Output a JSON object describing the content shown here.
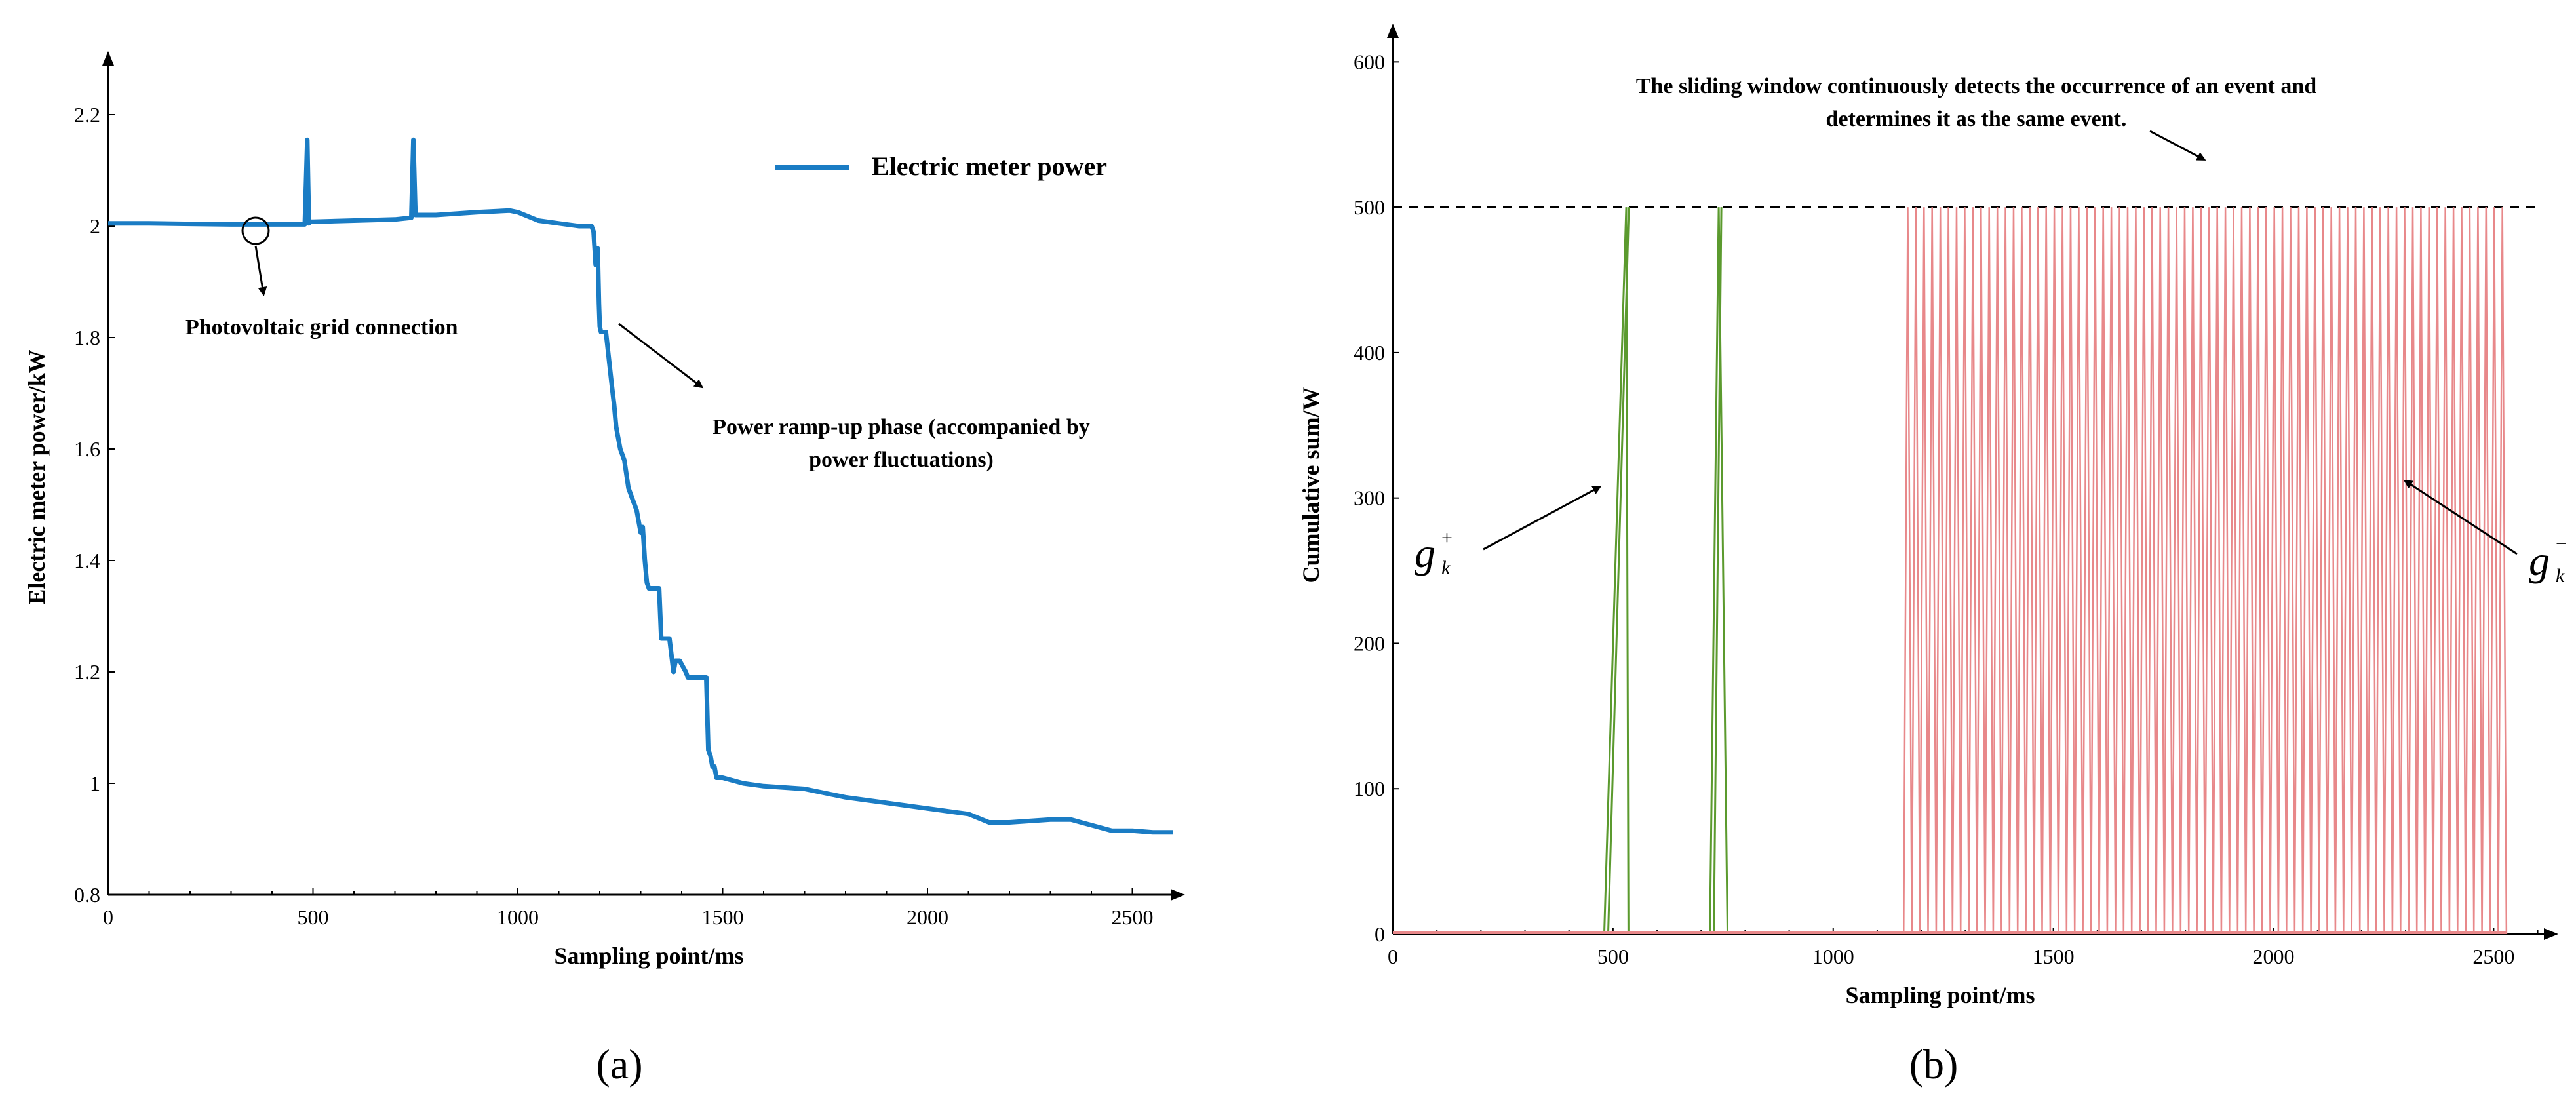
{
  "figure": {
    "panel_labels": [
      "(a)",
      "(b)"
    ]
  },
  "chart_data": [
    {
      "panel": "(a)",
      "type": "line",
      "title": "",
      "xlabel": "Sampling point/ms",
      "ylabel": "Electric meter power/kW",
      "xlim": [
        0,
        2600
      ],
      "ylim": [
        0.8,
        2.3
      ],
      "xticks": [
        0,
        500,
        1000,
        1500,
        2000,
        2500
      ],
      "yticks": [
        0.8,
        1,
        1.2,
        1.4,
        1.6,
        1.8,
        2,
        2.2
      ],
      "xtick_labels": [
        "0",
        "500",
        "1000",
        "1500",
        "2000",
        "2500"
      ],
      "ytick_labels": [
        "0.8",
        "1",
        "1.2",
        "1.4",
        "1.6",
        "1.8",
        "2",
        "2.2"
      ],
      "legend": {
        "position": "top-right",
        "entries": [
          "Electric meter power"
        ]
      },
      "series": [
        {
          "name": "Electric meter power",
          "color": "#1a7cc4",
          "x": [
            0,
            100,
            200,
            300,
            400,
            480,
            486,
            490,
            494,
            500,
            600,
            700,
            740,
            745,
            750,
            760,
            800,
            900,
            980,
            1000,
            1050,
            1100,
            1150,
            1180,
            1185,
            1190,
            1195,
            1198,
            1200,
            1203,
            1205,
            1215,
            1230,
            1235,
            1240,
            1250,
            1260,
            1270,
            1280,
            1290,
            1300,
            1305,
            1310,
            1315,
            1320,
            1330,
            1345,
            1350,
            1360,
            1370,
            1380,
            1385,
            1395,
            1410,
            1415,
            1430,
            1435,
            1460,
            1465,
            1470,
            1475,
            1480,
            1485,
            1500,
            1550,
            1600,
            1700,
            1800,
            1900,
            2000,
            2100,
            2150,
            2200,
            2300,
            2350,
            2400,
            2450,
            2500,
            2550,
            2600
          ],
          "y": [
            2.005,
            2.005,
            2.004,
            2.003,
            2.003,
            2.003,
            2.155,
            2.005,
            2.008,
            2.008,
            2.01,
            2.012,
            2.015,
            2.155,
            2.02,
            2.02,
            2.02,
            2.025,
            2.028,
            2.025,
            2.01,
            2.005,
            2.0,
            2.0,
            1.99,
            1.93,
            1.96,
            1.86,
            1.82,
            1.81,
            1.81,
            1.81,
            1.71,
            1.68,
            1.64,
            1.6,
            1.58,
            1.53,
            1.51,
            1.49,
            1.45,
            1.46,
            1.4,
            1.36,
            1.35,
            1.35,
            1.35,
            1.26,
            1.26,
            1.26,
            1.2,
            1.22,
            1.22,
            1.2,
            1.19,
            1.19,
            1.19,
            1.19,
            1.06,
            1.05,
            1.03,
            1.03,
            1.01,
            1.01,
            1.0,
            0.995,
            0.99,
            0.975,
            0.965,
            0.955,
            0.945,
            0.93,
            0.93,
            0.935,
            0.935,
            0.925,
            0.915,
            0.915,
            0.912,
            0.912
          ]
        }
      ],
      "annotations": [
        {
          "text": "Photovoltaic grid connection",
          "x": 370,
          "y": 2.0
        },
        {
          "text": "Power ramp-up phase (accompanied by",
          "x": 1180,
          "y": 1.9
        },
        {
          "text": "power fluctuations)",
          "x": 1180,
          "y": 1.9
        }
      ]
    },
    {
      "panel": "(b)",
      "type": "line",
      "title": "",
      "xlabel": "Sampling point/ms",
      "ylabel": "Cumulative sum/W",
      "xlim": [
        0,
        2620
      ],
      "ylim": [
        0,
        620
      ],
      "xticks": [
        0,
        500,
        1000,
        1500,
        2000,
        2500
      ],
      "yticks": [
        0,
        100,
        200,
        300,
        400,
        500,
        600
      ],
      "xtick_labels": [
        "0",
        "500",
        "1000",
        "1500",
        "2000",
        "2500"
      ],
      "ytick_labels": [
        "0",
        "100",
        "200",
        "300",
        "400",
        "500",
        "600"
      ],
      "threshold": {
        "value": 500,
        "style": "dashed"
      },
      "series": [
        {
          "name": "g_k^+",
          "label_main": "g",
          "label_sup": "+",
          "label_sub": "k",
          "color": "#5b9a2e",
          "spikes": [
            {
              "start": 480,
              "peak_x": 530,
              "end": 535,
              "peak": 500
            },
            {
              "start": 720,
              "peak_x": 740,
              "end": 760,
              "peak": 500
            }
          ]
        },
        {
          "name": "g_k^-",
          "label_main": "g",
          "label_sup": "−",
          "label_sub": "k",
          "color": "#e8888a",
          "oscillation": {
            "start": 1160,
            "end": 2530,
            "period": 18.5,
            "peak": 500
          }
        }
      ],
      "annotations": [
        {
          "text": "The sliding window continuously detects the occurrence of an event and",
          "target_x": 1860,
          "target_y": 505
        },
        {
          "text": "determines it as the same event.",
          "target_x": 1860,
          "target_y": 505
        }
      ]
    }
  ]
}
